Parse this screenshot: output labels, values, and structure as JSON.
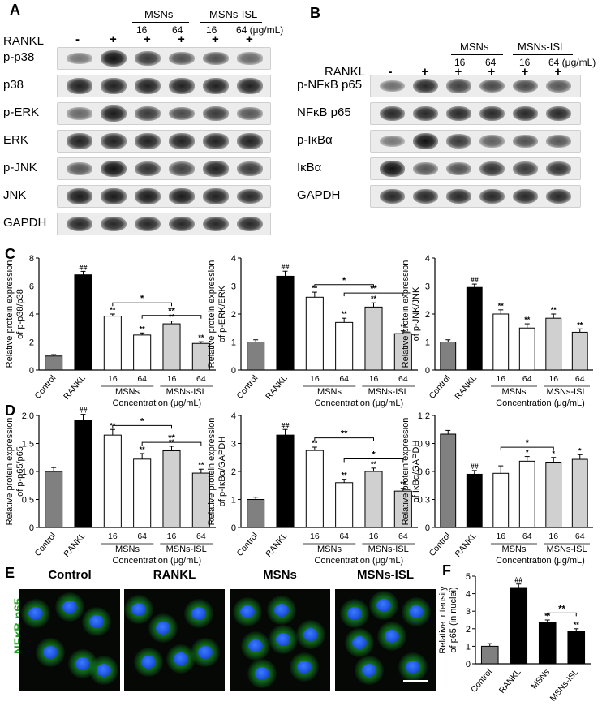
{
  "panel_letters": {
    "A": "A",
    "B": "B",
    "C": "C",
    "D": "D",
    "E": "E",
    "F": "F"
  },
  "blot_A": {
    "rankl_label": "RANKL",
    "groups": {
      "msns": "MSNs",
      "msns_isl": "MSNs-ISL"
    },
    "doses": [
      "16",
      "64",
      "16",
      "64 (μg/mL)"
    ],
    "signs": [
      "-",
      "+",
      "+",
      "+",
      "+",
      "+"
    ],
    "rows": [
      "p-p38",
      "p38",
      "p-ERK",
      "ERK",
      "p-JNK",
      "JNK",
      "GAPDH"
    ],
    "intensity": [
      [
        0.35,
        1.0,
        0.75,
        0.6,
        0.6,
        0.45
      ],
      [
        0.9,
        0.9,
        0.9,
        0.9,
        0.9,
        0.9
      ],
      [
        0.45,
        0.95,
        0.75,
        0.65,
        0.75,
        0.55
      ],
      [
        0.9,
        0.9,
        0.9,
        0.9,
        0.9,
        0.9
      ],
      [
        0.55,
        1.0,
        0.8,
        0.7,
        0.9,
        0.75
      ],
      [
        0.95,
        0.95,
        0.95,
        0.95,
        0.9,
        0.85
      ],
      [
        0.85,
        0.85,
        0.85,
        0.85,
        0.85,
        0.85
      ]
    ]
  },
  "blot_B": {
    "rankl_label": "RANKL",
    "groups": {
      "msns": "MSNs",
      "msns_isl": "MSNs-ISL"
    },
    "doses": [
      "16",
      "64",
      "16",
      "64 (μg/mL)"
    ],
    "signs": [
      "-",
      "+",
      "+",
      "+",
      "+",
      "+"
    ],
    "rows": [
      "p-NFκB p65",
      "NFκB p65",
      "p-IκBα",
      "IκBα",
      "GAPDH"
    ],
    "intensity": [
      [
        0.4,
        0.85,
        0.7,
        0.65,
        0.65,
        0.55
      ],
      [
        0.85,
        0.85,
        0.85,
        0.85,
        0.85,
        0.85
      ],
      [
        0.35,
        1.0,
        0.75,
        0.5,
        0.6,
        0.55
      ],
      [
        1.0,
        0.55,
        0.6,
        0.8,
        0.75,
        0.8
      ],
      [
        0.85,
        0.85,
        0.85,
        0.85,
        0.85,
        0.85
      ]
    ]
  },
  "chart_data": [
    {
      "type": "bar",
      "panel": "C",
      "ylabel": "Relative protein expression of p-p38/p38",
      "ylim": [
        0,
        8
      ],
      "yticks": [
        "0",
        "2",
        "4",
        "6",
        "8"
      ],
      "categories": [
        "Control",
        "RANKL",
        "16",
        "64",
        "16",
        "64"
      ],
      "values": [
        1.0,
        6.8,
        3.85,
        2.5,
        3.3,
        1.9
      ],
      "errors": [
        0.1,
        0.25,
        0.15,
        0.15,
        0.2,
        0.12
      ],
      "sig": [
        "",
        "##",
        "**",
        "**",
        "**",
        "**"
      ],
      "brackets": [
        {
          "from": 2,
          "to": 4,
          "label": "*",
          "y": 4.8
        },
        {
          "from": 3,
          "to": 5,
          "label": "**",
          "y": 3.9
        }
      ],
      "xlabel": "Concentration (μg/mL)",
      "groups": {
        "msns": "MSNs",
        "msns_isl": "MSNs-ISL"
      }
    },
    {
      "type": "bar",
      "panel": "C",
      "ylabel": "Relative protein expression of p-ERK/ERK",
      "ylim": [
        0,
        4
      ],
      "yticks": [
        "0",
        "1",
        "2",
        "3",
        "4"
      ],
      "categories": [
        "Control",
        "RANKL",
        "16",
        "64",
        "16",
        "64"
      ],
      "values": [
        1.0,
        3.35,
        2.6,
        1.7,
        2.25,
        1.3
      ],
      "errors": [
        0.08,
        0.18,
        0.18,
        0.15,
        0.15,
        0.1
      ],
      "sig": [
        "",
        "##",
        "**",
        "**",
        "**",
        "**"
      ],
      "brackets": [
        {
          "from": 2,
          "to": 4,
          "label": "*",
          "y": 3.05
        },
        {
          "from": 3,
          "to": 5,
          "label": "**",
          "y": 2.75
        }
      ],
      "xlabel": "Concentration (μg/mL)",
      "groups": {
        "msns": "MSNs",
        "msns_isl": "MSNs-ISL"
      }
    },
    {
      "type": "bar",
      "panel": "C",
      "ylabel": "Relative protein expression of p-JNK/JNK",
      "ylim": [
        0,
        4
      ],
      "yticks": [
        "0",
        "1",
        "2",
        "3",
        "4"
      ],
      "categories": [
        "Control",
        "RANKL",
        "16",
        "64",
        "16",
        "64"
      ],
      "values": [
        1.0,
        2.95,
        2.0,
        1.5,
        1.85,
        1.35
      ],
      "errors": [
        0.08,
        0.12,
        0.15,
        0.15,
        0.15,
        0.12
      ],
      "sig": [
        "",
        "##",
        "**",
        "**",
        "**",
        "**"
      ],
      "brackets": [],
      "xlabel": "Concentration (μg/mL)",
      "groups": {
        "msns": "MSNs",
        "msns_isl": "MSNs-ISL"
      }
    },
    {
      "type": "bar",
      "panel": "D",
      "ylabel": "Relative protein expression of p-p65/p65",
      "ylim": [
        0,
        2.0
      ],
      "yticks": [
        "0",
        "0.5",
        "1.0",
        "1.5",
        "2.0"
      ],
      "categories": [
        "Control",
        "RANKL",
        "16",
        "64",
        "16",
        "64"
      ],
      "values": [
        1.0,
        1.92,
        1.65,
        1.22,
        1.37,
        0.97
      ],
      "errors": [
        0.07,
        0.1,
        0.1,
        0.1,
        0.08,
        0.07
      ],
      "sig": [
        "",
        "##",
        "**",
        "**",
        "**",
        "**"
      ],
      "brackets": [
        {
          "from": 2,
          "to": 4,
          "label": "*",
          "y": 1.82
        },
        {
          "from": 3,
          "to": 5,
          "label": "**",
          "y": 1.52
        }
      ],
      "xlabel": "Concentration (μg/mL)",
      "groups": {
        "msns": "MSNs",
        "msns_isl": "MSNs-ISL"
      }
    },
    {
      "type": "bar",
      "panel": "D",
      "ylabel": "Relative protein expression of p-IκBα/GAPDH",
      "ylim": [
        0,
        4
      ],
      "yticks": [
        "0",
        "1",
        "2",
        "3",
        "4"
      ],
      "categories": [
        "Control",
        "RANKL",
        "16",
        "64",
        "16",
        "64"
      ],
      "values": [
        1.0,
        3.3,
        2.75,
        1.6,
        2.0,
        1.3
      ],
      "errors": [
        0.08,
        0.2,
        0.12,
        0.12,
        0.12,
        0.1
      ],
      "sig": [
        "",
        "##",
        "**",
        "**",
        "**",
        "**"
      ],
      "brackets": [
        {
          "from": 2,
          "to": 4,
          "label": "**",
          "y": 3.2
        },
        {
          "from": 3,
          "to": 5,
          "label": "*",
          "y": 2.45
        }
      ],
      "xlabel": "Concentration (μg/mL)",
      "groups": {
        "msns": "MSNs",
        "msns_isl": "MSNs-ISL"
      }
    },
    {
      "type": "bar",
      "panel": "D",
      "ylabel": "Relative protein expression of IκBα/GAPDH",
      "ylim": [
        0,
        1.2
      ],
      "yticks": [
        "0",
        "0.3",
        "0.6",
        "0.9",
        "1.2"
      ],
      "categories": [
        "Control",
        "RANKL",
        "16",
        "64",
        "16",
        "64"
      ],
      "values": [
        1.0,
        0.57,
        0.58,
        0.71,
        0.7,
        0.73
      ],
      "errors": [
        0.04,
        0.04,
        0.08,
        0.05,
        0.05,
        0.05
      ],
      "sig": [
        "",
        "##",
        "",
        "*",
        "*",
        "*"
      ],
      "brackets": [
        {
          "from": 2,
          "to": 4,
          "label": "*",
          "y": 0.86
        }
      ],
      "xlabel": "Concentration (μg/mL)",
      "groups": {
        "msns": "MSNs",
        "msns_isl": "MSNs-ISL"
      }
    },
    {
      "type": "bar",
      "panel": "F",
      "ylabel": "Relative intensity of p65 (in nuclei)",
      "ylim": [
        0,
        5
      ],
      "yticks": [
        "0",
        "1",
        "2",
        "3",
        "4",
        "5"
      ],
      "categories": [
        "Control",
        "RANKL",
        "MSNs",
        "MSNs-ISL"
      ],
      "values": [
        1.0,
        4.35,
        2.35,
        1.85
      ],
      "errors": [
        0.15,
        0.2,
        0.15,
        0.15
      ],
      "sig": [
        "",
        "##",
        "**",
        "**"
      ],
      "brackets": [
        {
          "from": 2,
          "to": 3,
          "label": "**",
          "y": 2.9
        }
      ],
      "xlabel": "",
      "groups": null
    }
  ],
  "micrographs": {
    "side_label": "NFκB p65",
    "titles": [
      "Control",
      "RANKL",
      "MSNs",
      "MSNs-ISL"
    ]
  },
  "colors": {
    "control": "#808080",
    "rankl": "#000000",
    "msns": "#ffffff",
    "msns_isl": "#d0d0d0",
    "green_label": "#29a329"
  }
}
